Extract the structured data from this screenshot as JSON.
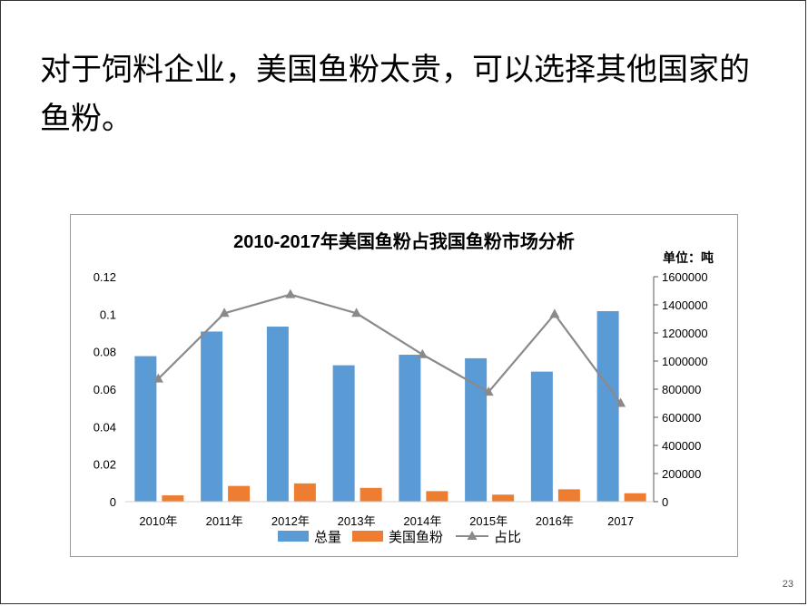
{
  "slide": {
    "headline": "对于饲料企业，美国鱼粉太贵，可以选择其他国家的鱼粉。",
    "page_number": "23"
  },
  "chart_data": {
    "type": "bar",
    "title": "2010-2017年美国鱼粉占我国鱼粉市场分析",
    "unit_label": "单位：吨",
    "categories": [
      "2010年",
      "2011年",
      "2012年",
      "2013年",
      "2014年",
      "2015年",
      "2016年",
      "2017"
    ],
    "series": [
      {
        "name": "总量",
        "type": "bar",
        "axis": "right",
        "color": "#5b9bd5",
        "values": [
          1035000,
          1210000,
          1245000,
          970000,
          1045000,
          1020000,
          925000,
          1355000
        ]
      },
      {
        "name": "美国鱼粉",
        "type": "bar",
        "axis": "right",
        "color": "#ed7d31",
        "values": [
          45000,
          112000,
          130000,
          98000,
          75000,
          50000,
          88000,
          60000
        ]
      },
      {
        "name": "占比",
        "type": "line",
        "axis": "left",
        "color": "#8a8a8a",
        "values": [
          0.0655,
          0.1005,
          0.1105,
          0.1005,
          0.0785,
          0.0585,
          0.1,
          0.0525
        ]
      }
    ],
    "left_axis": {
      "ylim": [
        0,
        0.12
      ],
      "ticks": [
        "0",
        "0.02",
        "0.04",
        "0.06",
        "0.08",
        "0.1",
        "0.12"
      ]
    },
    "right_axis": {
      "ylim": [
        0,
        1600000
      ],
      "ticks": [
        "0",
        "200000",
        "400000",
        "600000",
        "800000",
        "1000000",
        "1200000",
        "1400000",
        "1600000"
      ]
    },
    "legend_position": "bottom",
    "grid": false
  }
}
